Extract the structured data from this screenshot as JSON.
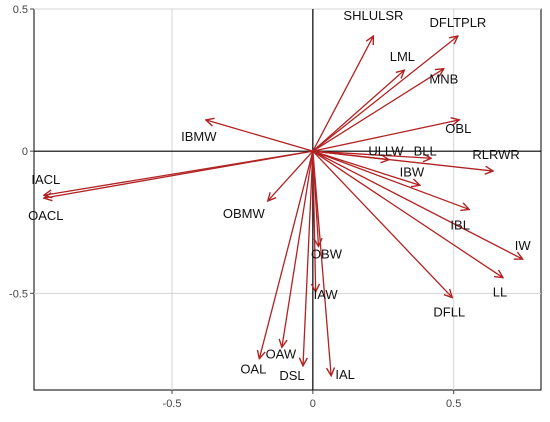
{
  "chart_data": {
    "type": "biplot",
    "title": "",
    "xlabel": "",
    "ylabel": "",
    "xlim": [
      -0.99,
      0.81
    ],
    "ylim": [
      -0.84,
      0.5
    ],
    "x_ticks": [
      -0.5,
      0,
      0.5
    ],
    "x_tick_labels": [
      "-0.5",
      "0",
      "0.5"
    ],
    "y_ticks": [
      0.5,
      0,
      -0.5
    ],
    "y_tick_labels": [
      "0.5",
      "0",
      "-0.5"
    ],
    "grid": true,
    "reference_lines": {
      "x": 0,
      "y": 0
    },
    "arrow_color": "#b22222",
    "vectors": [
      {
        "name": "SHLULSR",
        "x": 0.215,
        "y": 0.405
      },
      {
        "name": "DFLTPLR",
        "x": 0.515,
        "y": 0.405
      },
      {
        "name": "LML",
        "x": 0.325,
        "y": 0.285
      },
      {
        "name": "MNB",
        "x": 0.465,
        "y": 0.29
      },
      {
        "name": "OBL",
        "x": 0.52,
        "y": 0.11
      },
      {
        "name": "IBMW",
        "x": -0.38,
        "y": 0.11
      },
      {
        "name": "ULLW",
        "x": 0.27,
        "y": -0.03
      },
      {
        "name": "BLL",
        "x": 0.42,
        "y": -0.025
      },
      {
        "name": "RLRWR",
        "x": 0.64,
        "y": -0.07
      },
      {
        "name": "IBW",
        "x": 0.38,
        "y": -0.12
      },
      {
        "name": "IACL",
        "x": -0.955,
        "y": -0.155
      },
      {
        "name": "OACL",
        "x": -0.955,
        "y": -0.165
      },
      {
        "name": "OBMW",
        "x": -0.16,
        "y": -0.175
      },
      {
        "name": "IBL",
        "x": 0.555,
        "y": -0.205
      },
      {
        "name": "IW",
        "x": 0.745,
        "y": -0.38
      },
      {
        "name": "OBW",
        "x": 0.02,
        "y": -0.335
      },
      {
        "name": "LL",
        "x": 0.675,
        "y": -0.445
      },
      {
        "name": "IAW",
        "x": 0.01,
        "y": -0.495
      },
      {
        "name": "DFLL",
        "x": 0.495,
        "y": -0.515
      },
      {
        "name": "OAW",
        "x": -0.11,
        "y": -0.69
      },
      {
        "name": "OAL",
        "x": -0.19,
        "y": -0.73
      },
      {
        "name": "DSL",
        "x": -0.035,
        "y": -0.755
      },
      {
        "name": "IAL",
        "x": 0.065,
        "y": -0.79
      }
    ]
  }
}
